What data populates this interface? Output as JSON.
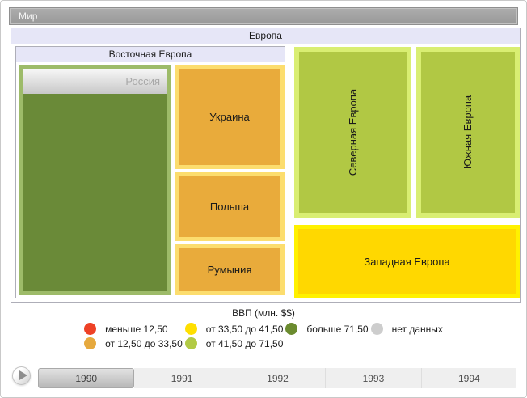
{
  "breadcrumb": {
    "world_label": "Мир"
  },
  "treemap": {
    "europe_label": "Европа",
    "eastern_europe_label": "Восточная Европа",
    "russia": {
      "label": "Россия",
      "fill": "#6a8a38",
      "border": "#9dbb69"
    },
    "ukraine": {
      "label": "Украина",
      "fill": "#e9ab3b",
      "border": "#fcdd6e"
    },
    "poland": {
      "label": "Польша",
      "fill": "#e9ab3b",
      "border": "#fcdd6e"
    },
    "romania": {
      "label": "Румыния",
      "fill": "#e9ab3b",
      "border": "#fcdd6e"
    },
    "northern_europe": {
      "label": "Северная Европа",
      "fill": "#b1c844",
      "border": "#d9ee72"
    },
    "southern_europe": {
      "label": "Южная Европа",
      "fill": "#b1c844",
      "border": "#d9ee72"
    },
    "western_europe": {
      "label": "Западная Европа",
      "fill": "#ffd800",
      "border": "#fff100"
    }
  },
  "legend": {
    "title": "ВВП (млн. $$)",
    "items": [
      {
        "label": "меньше 12,50",
        "color": "#ee4126"
      },
      {
        "label": "от 12,50 до 33,50",
        "color": "#e6a93e"
      },
      {
        "label": "от 33,50 до 41,50",
        "color": "#ffdf00"
      },
      {
        "label": "от 41,50 до 71,50",
        "color": "#b2ca45"
      },
      {
        "label": "больше 71,50",
        "color": "#6b8b2f"
      },
      {
        "label": "нет данных",
        "color": "#cdcdcd"
      }
    ]
  },
  "timeline": {
    "years": [
      "1990",
      "1991",
      "1992",
      "1993",
      "1994"
    ],
    "selected_year": "1990"
  },
  "chart_data": {
    "type": "treemap",
    "title": "Мир",
    "legend_title": "ВВП (млн. $$)",
    "legend_classes": [
      "меньше 12,50",
      "от 12,50 до 33,50",
      "от 33,50 до 41,50",
      "от 41,50 до 71,50",
      "больше 71,50",
      "нет данных"
    ],
    "groups": [
      {
        "name": "Европа",
        "children": [
          {
            "name": "Восточная Европа",
            "children": [
              {
                "name": "Россия",
                "color_class": "больше 71,50"
              },
              {
                "name": "Украина",
                "color_class": "от 12,50 до 33,50"
              },
              {
                "name": "Польша",
                "color_class": "от 12,50 до 33,50"
              },
              {
                "name": "Румыния",
                "color_class": "от 12,50 до 33,50"
              }
            ]
          },
          {
            "name": "Северная Европа",
            "color_class": "от 41,50 до 71,50"
          },
          {
            "name": "Южная Европа",
            "color_class": "от 41,50 до 71,50"
          },
          {
            "name": "Западная Европа",
            "color_class": "от 33,50 до 41,50"
          }
        ]
      }
    ],
    "timeline_years": [
      "1990",
      "1991",
      "1992",
      "1993",
      "1994"
    ],
    "selected_year": "1990"
  }
}
